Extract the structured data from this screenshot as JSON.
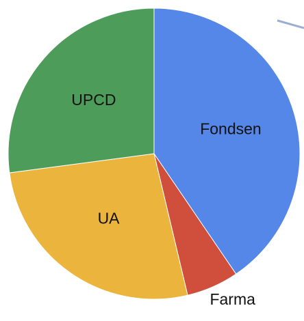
{
  "chart_data": {
    "type": "pie",
    "categories": [
      "Fondsen",
      "Farma",
      "UA",
      "UPCD"
    ],
    "values": [
      40.5,
      5.8,
      26.6,
      27.1
    ],
    "colors": [
      "#5487e8",
      "#cf4e3c",
      "#ebb43c",
      "#4d9c5a"
    ]
  }
}
